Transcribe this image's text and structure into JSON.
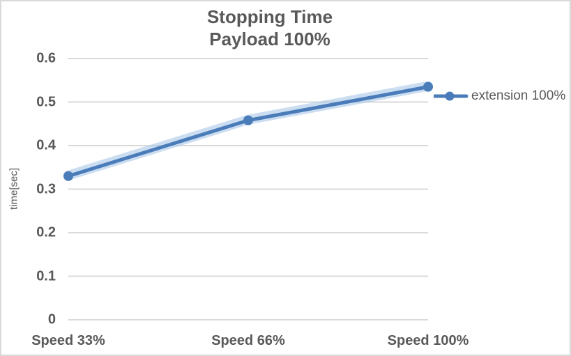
{
  "chart_data": {
    "type": "line",
    "title_lines": [
      "Stopping Time",
      "Payload 100%"
    ],
    "categories": [
      "Speed 33%",
      "Speed 66%",
      "Speed 100%"
    ],
    "series": [
      {
        "name": "extension 100%",
        "values": [
          0.33,
          0.458,
          0.535
        ]
      }
    ],
    "xlabel": "",
    "ylabel": "time[sec]",
    "ylim": [
      0,
      0.6
    ],
    "ytick_step": 0.1,
    "ytick_labels": [
      "0",
      "0.1",
      "0.2",
      "0.3",
      "0.4",
      "0.5",
      "0.6"
    ],
    "grid": "horizontal-only",
    "legend_position": "right",
    "colors": {
      "line": "#4A7CBA",
      "glow": "#A9C6E6",
      "marker": "#4A7CBA",
      "grid": "#D9D9D9",
      "text": "#595959",
      "border": "#D9D9D9",
      "background": "#FFFFFF"
    }
  }
}
